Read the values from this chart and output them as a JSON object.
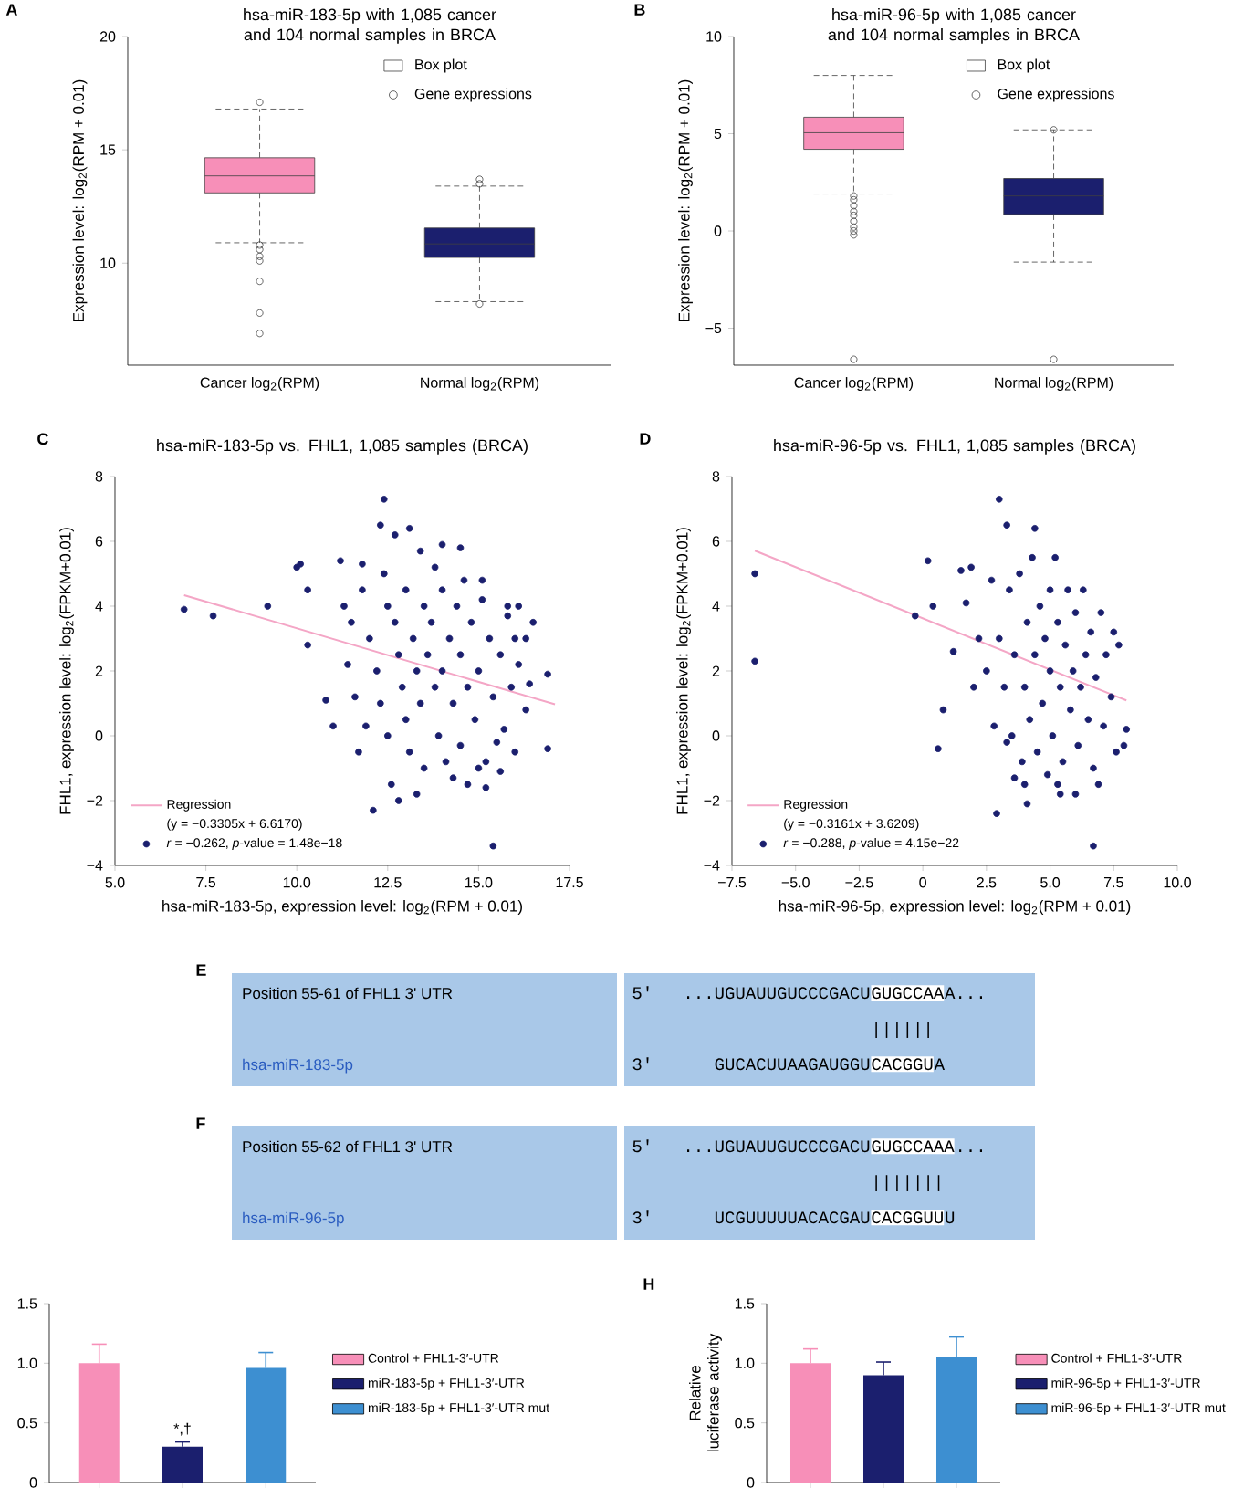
{
  "chart_data": [
    {
      "type": "box",
      "title": "hsa-miR-183-5p with 1,085 cancer and 104 normal samples in BRCA",
      "ylabel": "Expression level: log$_{2}$(RPM + 0.01)",
      "categories": [
        "Cancer log$_{2}$(RPM)",
        "Normal log$_{2}$(RPM)"
      ],
      "colors": [
        "#f78fb8",
        "#1b1f6e"
      ],
      "boxes": [
        {
          "low": 10.9,
          "q1": 13.1,
          "median": 13.85,
          "q3": 14.65,
          "high": 16.8,
          "outliers": [
            17.1,
            10.8,
            10.6,
            10.3,
            10.1,
            9.2,
            7.8,
            6.9
          ]
        },
        {
          "low": 8.3,
          "q1": 10.25,
          "median": 10.85,
          "q3": 11.55,
          "high": 13.4,
          "outliers": [
            13.7,
            13.5,
            8.2
          ]
        }
      ],
      "ylim": [
        5.5,
        20
      ],
      "yticks": [
        10,
        15,
        20
      ],
      "annotations": [
        "A",
        "Box plot",
        "Gene expressions"
      ]
    },
    {
      "type": "box",
      "title": "hsa-miR-96-5p with 1,085 cancer and 104 normal samples in BRCA",
      "ylabel": "Expression level: log$_{2}$(RPM + 0.01)",
      "categories": [
        "Cancer log$_{2}$(RPM)",
        "Normal log$_{2}$(RPM)"
      ],
      "colors": [
        "#f78fb8",
        "#1b1f6e"
      ],
      "boxes": [
        {
          "low": 1.9,
          "q1": 4.2,
          "median": 5.05,
          "q3": 5.85,
          "high": 8.0,
          "outliers": [
            1.8,
            1.6,
            1.3,
            1.0,
            0.8,
            0.5,
            0.2,
            0.0,
            -0.2,
            -6.6
          ]
        },
        {
          "low": -1.6,
          "q1": 0.85,
          "median": 1.8,
          "q3": 2.7,
          "high": 5.2,
          "outliers": [
            5.2,
            -6.6
          ]
        }
      ],
      "ylim": [
        -6.9,
        10
      ],
      "yticks": [
        {
          "value": -5,
          "label": "−5"
        },
        0,
        5,
        10
      ],
      "annotations": [
        "B",
        "Box plot",
        "Gene expressions"
      ]
    },
    {
      "type": "scatter",
      "title": "hsa-miR-183-5p vs. FHL1, 1,085 samples (BRCA)",
      "xlabel": "hsa-miR-183-5p, expression level: log$_{2}$(RPM + 0.01)",
      "ylabel": "FHL1, expression level: log$_{2}$(FPKM+0.01)",
      "xlim": [
        5,
        17.5
      ],
      "ylim": [
        -4,
        8
      ],
      "xticks": [
        {
          "value": 5,
          "label": "5.0"
        },
        7.5,
        {
          "value": 10,
          "label": "10.0"
        },
        12.5,
        {
          "value": 15,
          "label": "15.0"
        },
        17.5
      ],
      "yticks": [
        {
          "value": -4,
          "label": "−4"
        },
        {
          "value": -2,
          "label": "−2"
        },
        0,
        2,
        4,
        6,
        8
      ],
      "legend": "bottom left",
      "series": [
        {
          "name": "*r* = −0.262, *p*-value = 1.48e−18",
          "color": "#1b1f6e",
          "marker": "circle",
          "x": [
            6.9,
            7.7,
            9.2,
            10.0,
            10.1,
            12.4,
            12.3,
            13.1,
            14.0,
            14.5,
            12.1,
            15.4,
            16.9,
            16.9,
            16.3,
            16.1,
            10.3,
            10.3,
            10.8,
            11.0,
            12.8,
            14.7,
            15.2,
            15.6,
            16.3,
            11.2,
            11.8,
            12.7,
            13.4,
            15.1,
            15.8,
            12.0,
            12.2,
            12.3,
            12.5,
            12.5,
            12.7,
            12.8,
            12.9,
            13.0,
            13.0,
            13.1,
            13.2,
            13.3,
            13.4,
            13.5,
            13.5,
            13.6,
            13.7,
            13.8,
            13.9,
            14.0,
            14.0,
            14.1,
            14.2,
            14.3,
            14.4,
            14.5,
            14.5,
            14.7,
            14.8,
            14.9,
            15.0,
            15.1,
            15.2,
            15.3,
            15.4,
            15.6,
            15.7,
            15.8,
            15.9,
            16.0,
            16.1,
            11.5,
            11.4,
            11.6,
            11.8,
            11.9,
            11.3,
            11.7,
            12.4,
            13.8,
            14.6,
            12.6,
            13.3,
            14.3,
            15.0,
            15.5,
            16.4,
            16.5,
            16.0
          ],
          "values": [
            3.9,
            3.7,
            4.0,
            5.2,
            5.3,
            7.3,
            6.5,
            6.4,
            5.9,
            5.8,
            -2.3,
            -3.4,
            1.9,
            -0.4,
            3.0,
            4.0,
            2.8,
            4.5,
            1.1,
            0.3,
            -2.0,
            -1.5,
            -1.6,
            -1.1,
            0.8,
            5.4,
            5.3,
            6.2,
            5.7,
            4.8,
            3.7,
            3.0,
            2.0,
            1.0,
            4.0,
            0.0,
            3.5,
            2.5,
            1.5,
            4.5,
            0.5,
            -0.5,
            3.0,
            2.0,
            1.0,
            4.0,
            -1.0,
            2.5,
            3.5,
            1.5,
            0.0,
            4.5,
            2.0,
            -0.8,
            3.0,
            1.0,
            4.0,
            2.5,
            -0.3,
            1.5,
            3.5,
            0.5,
            2.0,
            4.2,
            -0.8,
            3.0,
            1.2,
            2.5,
            0.2,
            4.0,
            1.5,
            -0.5,
            2.2,
            3.5,
            2.2,
            1.2,
            4.5,
            0.3,
            4.0,
            -0.5,
            5.0,
            5.2,
            4.8,
            -1.5,
            -1.8,
            -1.3,
            -1.0,
            -0.2,
            1.6,
            3.5,
            3.0
          ]
        },
        {
          "type": "line",
          "name": "Regression",
          "color": "#f4a6c6",
          "marker": "none",
          "x": [
            6.9,
            17.1
          ],
          "values": [
            4.34,
            0.97
          ]
        }
      ],
      "annotations": [
        "C",
        "(y = −0.3305x + 6.6170)"
      ]
    },
    {
      "type": "scatter",
      "title": "hsa-miR-96-5p vs. FHL1, 1,085 samples (BRCA)",
      "xlabel": "hsa-miR-96-5p, expression level: log$_{2}$(RPM + 0.01)",
      "ylabel": "FHL1, expression level: log$_{2}$(FPKM+0.01)",
      "xlim": [
        -7.5,
        10
      ],
      "ylim": [
        -4,
        8
      ],
      "xticks": [
        {
          "value": -7.5,
          "label": "−7.5"
        },
        {
          "value": -5,
          "label": "−5.0"
        },
        {
          "value": -2.5,
          "label": "−2.5"
        },
        0,
        2.5,
        {
          "value": 5,
          "label": "5.0"
        },
        7.5,
        {
          "value": 10,
          "label": "10.0"
        }
      ],
      "yticks": [
        {
          "value": -4,
          "label": "−4"
        },
        {
          "value": -2,
          "label": "−2"
        },
        0,
        2,
        4,
        6,
        8
      ],
      "legend": "bottom left",
      "series": [
        {
          "name": "*r* = −0.288, *p*-value = 4.15e−22",
          "color": "#1b1f6e",
          "marker": "circle",
          "x": [
            -6.6,
            -6.6,
            0.2,
            0.4,
            -0.3,
            0.8,
            0.6,
            2.9,
            6.7,
            3.0,
            3.3,
            4.4,
            4.1,
            7.9,
            8.0,
            7.7,
            1.7,
            1.9,
            1.2,
            1.5,
            6.9,
            5.4,
            3.6,
            3.0,
            3.2,
            3.4,
            3.5,
            3.6,
            3.8,
            3.9,
            4.0,
            4.1,
            4.2,
            4.3,
            4.4,
            4.5,
            4.6,
            4.7,
            4.8,
            4.9,
            5.0,
            5.0,
            5.1,
            5.2,
            5.3,
            5.4,
            5.5,
            5.6,
            5.7,
            5.8,
            5.9,
            6.0,
            6.1,
            6.2,
            6.3,
            6.4,
            6.5,
            6.6,
            6.7,
            6.8,
            7.0,
            7.1,
            7.2,
            7.4,
            7.5,
            7.6,
            2.5,
            2.7,
            2.8,
            2.2,
            2.0,
            3.3,
            4.0,
            5.3,
            6.0
          ],
          "values": [
            5.0,
            2.3,
            5.4,
            4.0,
            3.7,
            0.8,
            -0.4,
            -2.4,
            -3.4,
            7.3,
            6.5,
            6.4,
            -2.1,
            -0.3,
            0.2,
            2.8,
            4.1,
            5.2,
            2.6,
            5.1,
            -1.5,
            -1.8,
            -1.3,
            3.0,
            1.5,
            4.5,
            0.0,
            2.5,
            5.0,
            -0.8,
            1.5,
            3.5,
            0.5,
            5.5,
            2.5,
            -0.5,
            4.0,
            1.0,
            3.0,
            -1.2,
            2.0,
            4.5,
            0.0,
            5.5,
            3.5,
            1.5,
            -0.8,
            2.8,
            4.5,
            0.8,
            2.0,
            3.8,
            -0.3,
            1.5,
            4.5,
            2.5,
            0.5,
            3.2,
            -1.0,
            1.8,
            3.8,
            0.3,
            2.5,
            1.2,
            3.2,
            -0.5,
            2.0,
            4.8,
            0.3,
            3.0,
            1.5,
            -0.2,
            -1.5,
            -1.5,
            -1.8
          ]
        },
        {
          "type": "line",
          "name": "Regression",
          "color": "#f4a6c6",
          "marker": "none",
          "x": [
            -6.6,
            8.0
          ],
          "values": [
            5.71,
            1.09
          ]
        }
      ],
      "annotations": [
        "D",
        "(y = −0.3161x + 3.6209)"
      ]
    },
    {
      "type": "other",
      "annotations": [
        "E",
        "Position 55-61 of FHL1 3' UTR",
        "hsa-miR-183-5p",
        "5'",
        "...UGUAUUGUCCCGACU",
        "GUGCCAA",
        "A...",
        "||||||",
        "3'",
        "GUCACUUAAGAUGGU",
        "CACGGU",
        "A"
      ]
    },
    {
      "type": "other",
      "annotations": [
        "F",
        "Position 55-62 of FHL1 3' UTR",
        "hsa-miR-96-5p",
        "5'",
        "...UGUAUUGUCCCGACU",
        "GUGCCAAA",
        "...",
        "|||||||",
        "3'",
        "UCGUUUUUACACGAU",
        "CACGGUU",
        "U"
      ]
    },
    {
      "type": "bar",
      "categories": [
        null,
        null,
        null
      ],
      "ylim": [
        0,
        1.5
      ],
      "yticks": [
        0,
        {
          "value": 0.5,
          "label": "0.5"
        },
        {
          "value": 1,
          "label": "1.0"
        },
        {
          "value": 1.5,
          "label": "1.5"
        }
      ],
      "legend": "right",
      "series": [
        {
          "name": "Control + FHL1-3′-UTR",
          "color": "#f78fb8",
          "values": [
            1.0,
            null,
            null
          ],
          "errors": [
            [
              1.0,
              1.16
            ],
            null,
            null
          ]
        },
        {
          "name": "miR-183-5p + FHL1-3′-UTR",
          "color": "#1b1f6e",
          "values": [
            null,
            0.3,
            null
          ],
          "errors": [
            null,
            [
              0.3,
              0.34
            ],
            null
          ],
          "value_labels": [
            null,
            "*,†",
            null
          ]
        },
        {
          "name": "miR-183-5p + FHL1-3′-UTR mut",
          "color": "#3d8fd1",
          "values": [
            null,
            null,
            0.96
          ],
          "errors": [
            null,
            null,
            [
              0.96,
              1.09
            ]
          ]
        }
      ]
    },
    {
      "type": "bar",
      "ylabel": "Relative luciferase activity",
      "categories": [
        null,
        null,
        null
      ],
      "ylim": [
        0,
        1.5
      ],
      "yticks": [
        0,
        {
          "value": 0.5,
          "label": "0.5"
        },
        {
          "value": 1,
          "label": "1.0"
        },
        {
          "value": 1.5,
          "label": "1.5"
        }
      ],
      "legend": "right",
      "series": [
        {
          "name": "Control + FHL1-3′-UTR",
          "color": "#f78fb8",
          "values": [
            1.0,
            null,
            null
          ],
          "errors": [
            [
              1.0,
              1.12
            ],
            null,
            null
          ]
        },
        {
          "name": "miR-96-5p + FHL1-3′-UTR",
          "color": "#1b1f6e",
          "values": [
            null,
            0.9,
            null
          ],
          "errors": [
            null,
            [
              0.9,
              1.01
            ],
            null
          ]
        },
        {
          "name": "miR-96-5p + FHL1-3′-UTR mut",
          "color": "#3d8fd1",
          "values": [
            null,
            null,
            1.05
          ],
          "errors": [
            null,
            null,
            [
              1.05,
              1.22
            ]
          ]
        }
      ],
      "annotations": [
        "H"
      ]
    }
  ]
}
